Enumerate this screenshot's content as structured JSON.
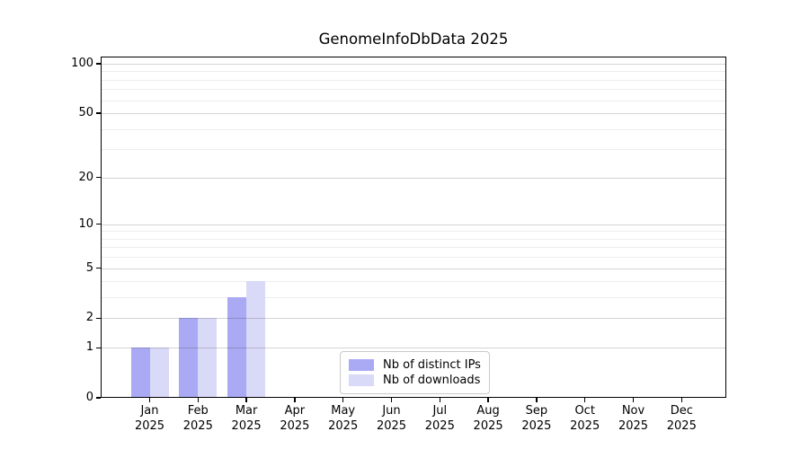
{
  "chart_data": {
    "type": "bar",
    "title": "GenomeInfoDbData 2025",
    "categories": [
      "Jan",
      "Feb",
      "Mar",
      "Apr",
      "May",
      "Jun",
      "Jul",
      "Aug",
      "Sep",
      "Oct",
      "Nov",
      "Dec"
    ],
    "x_axis": {
      "tick_label_line2": "2025"
    },
    "series": [
      {
        "name": "Nb of distinct IPs",
        "color": "#a9a9f4",
        "values": [
          1,
          2,
          3,
          0,
          0,
          0,
          0,
          0,
          0,
          0,
          0,
          0
        ]
      },
      {
        "name": "Nb of downloads",
        "color": "#d9d9f8",
        "values": [
          1,
          2,
          4,
          0,
          0,
          0,
          0,
          0,
          0,
          0,
          0,
          0
        ]
      }
    ],
    "y_axis": {
      "scale": "log1p",
      "tick_values": [
        0,
        1,
        2,
        5,
        10,
        20,
        50,
        100
      ],
      "tick_labels": [
        "0",
        "1",
        "2",
        "5",
        "10",
        "20",
        "50",
        "100"
      ],
      "minor_gridline_values": [
        3,
        4,
        6,
        7,
        8,
        9,
        30,
        40,
        60,
        70,
        80,
        90
      ],
      "range_max": 110
    },
    "legend": {
      "position": "lower center"
    },
    "grid": true,
    "colors": {
      "major_grid": "#d4d4d4",
      "minor_grid": "#ededed",
      "axis": "#000000",
      "background": "#ffffff"
    }
  }
}
